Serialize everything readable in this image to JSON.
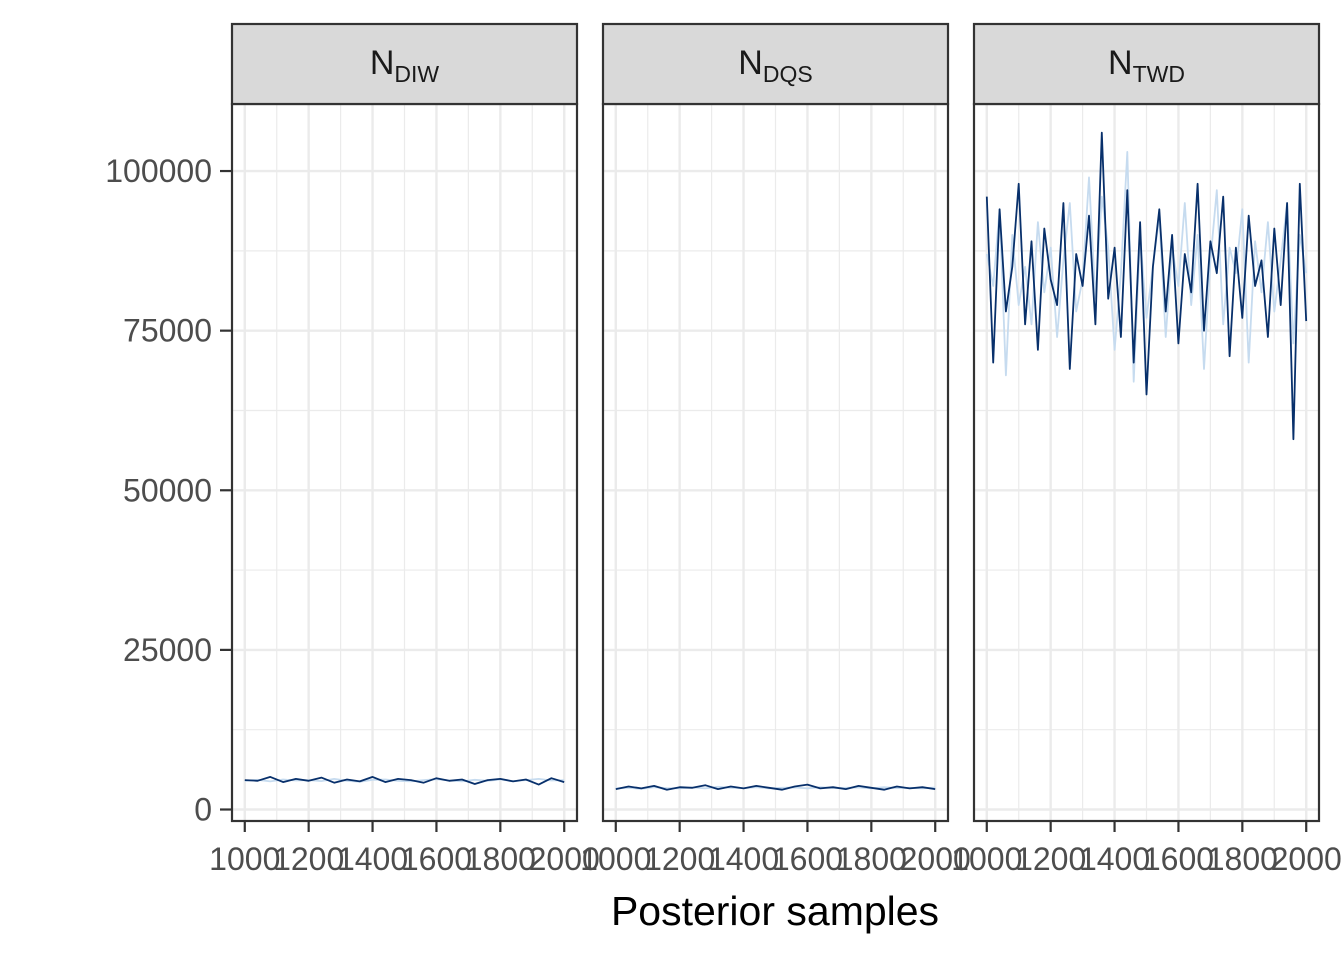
{
  "chart_data": {
    "type": "line",
    "xlabel": "Posterior samples",
    "ylabel": "",
    "ylim": [
      -1800,
      110500
    ],
    "xlim": [
      960,
      2040
    ],
    "x_ticks": [
      1000,
      1200,
      1400,
      1600,
      1800,
      2000
    ],
    "x_tick_labels": [
      "1000",
      "1200",
      "1400",
      "1600",
      "1800",
      "2000"
    ],
    "y_ticks": [
      0,
      25000,
      50000,
      75000,
      100000
    ],
    "y_tick_labels": [
      "0",
      "25000",
      "50000",
      "75000",
      "100000"
    ],
    "grid": true,
    "legend": "none",
    "series_colors": {
      "chain_dark": "#08306b",
      "chain_light": "#c6dbef"
    },
    "panels": [
      {
        "strip_main": "N",
        "strip_sub": "DIW",
        "x": [
          1000,
          1040,
          1080,
          1120,
          1160,
          1200,
          1240,
          1280,
          1320,
          1360,
          1400,
          1440,
          1480,
          1520,
          1560,
          1600,
          1640,
          1680,
          1720,
          1760,
          1800,
          1840,
          1880,
          1920,
          1960,
          2000
        ],
        "series": [
          {
            "color": "#c6dbef",
            "values": [
              4500,
              4650,
              4400,
              4700,
              4550,
              4600,
              4450,
              4800,
              4500,
              4350,
              4650,
              4700,
              4500,
              4400,
              4600,
              4750,
              4550,
              4400,
              4650,
              4500,
              4700,
              4450,
              4600,
              4800,
              4550,
              4600
            ]
          },
          {
            "color": "#08306b",
            "values": [
              4600,
              4500,
              5100,
              4300,
              4800,
              4500,
              5000,
              4200,
              4700,
              4400,
              5100,
              4300,
              4800,
              4600,
              4200,
              4900,
              4500,
              4700,
              4000,
              4600,
              4800,
              4400,
              4700,
              3900,
              4900,
              4300
            ]
          }
        ]
      },
      {
        "strip_main": "N",
        "strip_sub": "DQS",
        "x": [
          1000,
          1040,
          1080,
          1120,
          1160,
          1200,
          1240,
          1280,
          1320,
          1360,
          1400,
          1440,
          1480,
          1520,
          1560,
          1600,
          1640,
          1680,
          1720,
          1760,
          1800,
          1840,
          1880,
          1920,
          1960,
          2000
        ],
        "series": [
          {
            "color": "#c6dbef",
            "values": [
              3300,
              3400,
              3250,
              3500,
              3350,
              3300,
              3450,
              3300,
              3550,
              3400,
              3350,
              3500,
              3300,
              3400,
              3450,
              3300,
              3500,
              3350,
              3400,
              3450,
              3300,
              3500,
              3350,
              3400,
              3300,
              3450
            ]
          },
          {
            "color": "#08306b",
            "values": [
              3200,
              3600,
              3300,
              3700,
              3100,
              3500,
              3400,
              3800,
              3200,
              3600,
              3300,
              3700,
              3400,
              3100,
              3600,
              3900,
              3300,
              3500,
              3200,
              3700,
              3400,
              3100,
              3600,
              3300,
              3500,
              3200
            ]
          }
        ]
      },
      {
        "strip_main": "N",
        "strip_sub": "TWD",
        "x": [
          1000,
          1020,
          1040,
          1060,
          1080,
          1100,
          1120,
          1140,
          1160,
          1180,
          1200,
          1220,
          1240,
          1260,
          1280,
          1300,
          1320,
          1340,
          1360,
          1380,
          1400,
          1420,
          1440,
          1460,
          1480,
          1500,
          1520,
          1540,
          1560,
          1580,
          1600,
          1620,
          1640,
          1660,
          1680,
          1700,
          1720,
          1740,
          1760,
          1780,
          1800,
          1820,
          1840,
          1860,
          1880,
          1900,
          1920,
          1940,
          1960,
          1980,
          2000
        ],
        "series": [
          {
            "color": "#c6dbef",
            "values": [
              87000,
              82000,
              94000,
              68000,
              90000,
              79000,
              85000,
              76000,
              92000,
              81000,
              88000,
              74000,
              86000,
              95000,
              78000,
              83000,
              99000,
              80000,
              96000,
              88000,
              72000,
              84000,
              103000,
              67000,
              90000,
              77000,
              85000,
              93000,
              74000,
              88000,
              82000,
              95000,
              79000,
              90000,
              69000,
              86000,
              97000,
              76000,
              88000,
              84000,
              94000,
              70000,
              89000,
              81000,
              92000,
              78000,
              86000,
              95000,
              73000,
              90000,
              84000
            ]
          },
          {
            "color": "#08306b",
            "values": [
              96000,
              70000,
              94000,
              78000,
              85000,
              98000,
              76000,
              89000,
              72000,
              91000,
              83000,
              79000,
              95000,
              69000,
              87000,
              82000,
              93000,
              76000,
              106000,
              80000,
              88000,
              74000,
              97000,
              70000,
              92000,
              65000,
              85000,
              94000,
              78000,
              90000,
              73000,
              87000,
              81000,
              98000,
              75000,
              89000,
              84000,
              96000,
              71000,
              88000,
              77000,
              93000,
              82000,
              86000,
              74000,
              91000,
              79000,
              95000,
              58000,
              98000,
              76500
            ]
          }
        ]
      }
    ]
  }
}
